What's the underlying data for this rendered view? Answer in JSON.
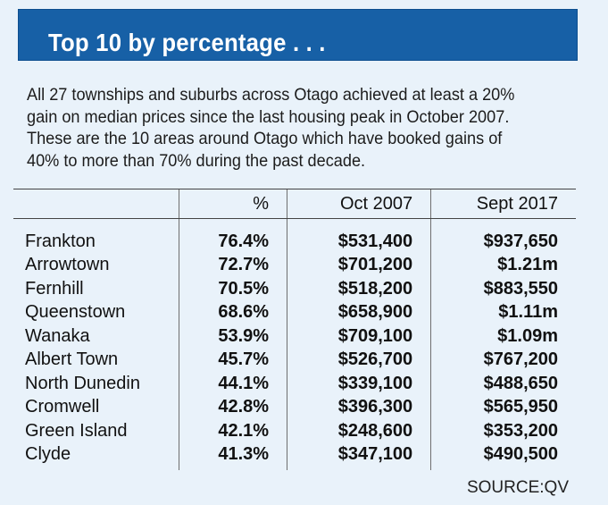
{
  "banner": {
    "title": "Top 10 by percentage . . ."
  },
  "intro": {
    "lines": [
      "All 27 townships and suburbs across Otago achieved at least a 20%",
      "gain on median prices since the last housing peak in October 2007.",
      "These are the 10 areas around Otago which have booked gains of",
      "40% to more than 70% during the past decade."
    ]
  },
  "table": {
    "headers": {
      "area": "",
      "pct": "%",
      "oct": "Oct 2007",
      "sept": "Sept 2017"
    },
    "rows": [
      {
        "area": "Frankton",
        "pct": "76.4%",
        "oct": "$531,400",
        "sept": "$937,650"
      },
      {
        "area": "Arrowtown",
        "pct": "72.7%",
        "oct": "$701,200",
        "sept": "$1.21m"
      },
      {
        "area": "Fernhill",
        "pct": "70.5%",
        "oct": "$518,200",
        "sept": "$883,550"
      },
      {
        "area": "Queenstown",
        "pct": "68.6%",
        "oct": "$658,900",
        "sept": "$1.11m"
      },
      {
        "area": "Wanaka",
        "pct": "53.9%",
        "oct": "$709,100",
        "sept": "$1.09m"
      },
      {
        "area": "Albert Town",
        "pct": "45.7%",
        "oct": "$526,700",
        "sept": "$767,200"
      },
      {
        "area": "North Dunedin",
        "pct": "44.1%",
        "oct": "$339,100",
        "sept": "$488,650"
      },
      {
        "area": "Cromwell",
        "pct": "42.8%",
        "oct": "$396,300",
        "sept": "$565,950"
      },
      {
        "area": "Green Island",
        "pct": "42.1%",
        "oct": "$248,600",
        "sept": "$353,200"
      },
      {
        "area": "Clyde",
        "pct": "41.3%",
        "oct": "$347,100",
        "sept": "$490,500"
      }
    ]
  },
  "source": "SOURCE:QV",
  "colors": {
    "banner": "#1760a6",
    "background": "#e9f2fa",
    "text": "#111111"
  }
}
